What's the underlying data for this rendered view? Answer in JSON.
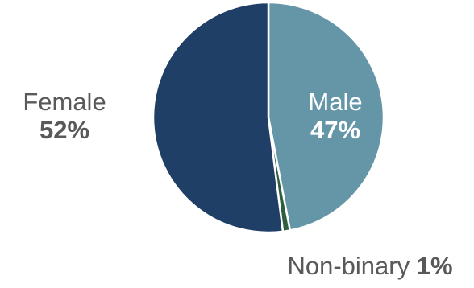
{
  "chart_data": {
    "type": "pie",
    "categories": [
      "Male",
      "Non-binary",
      "Female"
    ],
    "values": [
      47,
      1,
      52
    ],
    "labels": {
      "male": {
        "name": "Male",
        "pct": "47%"
      },
      "nonbinary": {
        "name": "Non-binary",
        "pct": "1%"
      },
      "female": {
        "name": "Female",
        "pct": "52%"
      }
    },
    "colors": [
      "#6596A8",
      "#2F5E3F",
      "#1F3F66"
    ]
  }
}
